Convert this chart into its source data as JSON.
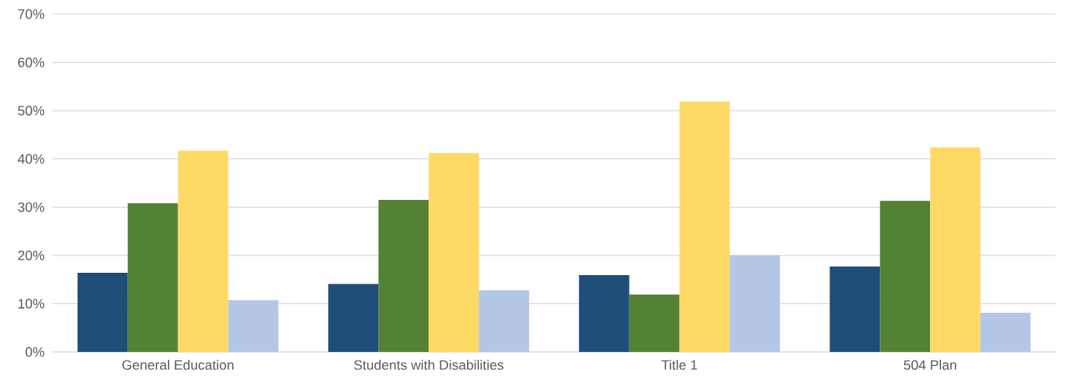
{
  "chart_data": {
    "type": "bar",
    "categories": [
      "General Education",
      "Students with Disabilities",
      "Title 1",
      "504 Plan"
    ],
    "series": [
      {
        "color": "#1f4e79",
        "values": [
          16.4,
          14.1,
          15.9,
          17.7
        ]
      },
      {
        "color": "#548235",
        "values": [
          30.8,
          31.5,
          11.9,
          31.3
        ]
      },
      {
        "color": "#ffd966",
        "values": [
          41.7,
          41.2,
          51.9,
          42.4
        ]
      },
      {
        "color": "#b4c7e7",
        "values": [
          10.7,
          12.8,
          20.0,
          8.1
        ]
      }
    ],
    "ylim": [
      0,
      70
    ],
    "yticks": [
      {
        "value": 0,
        "label": "0%"
      },
      {
        "value": 10,
        "label": "10%"
      },
      {
        "value": 20,
        "label": "20%"
      },
      {
        "value": 30,
        "label": "30%"
      },
      {
        "value": 40,
        "label": "40%"
      },
      {
        "value": 50,
        "label": "50%"
      },
      {
        "value": 60,
        "label": "60%"
      },
      {
        "value": 70,
        "label": "70%"
      }
    ],
    "grid": "y"
  }
}
